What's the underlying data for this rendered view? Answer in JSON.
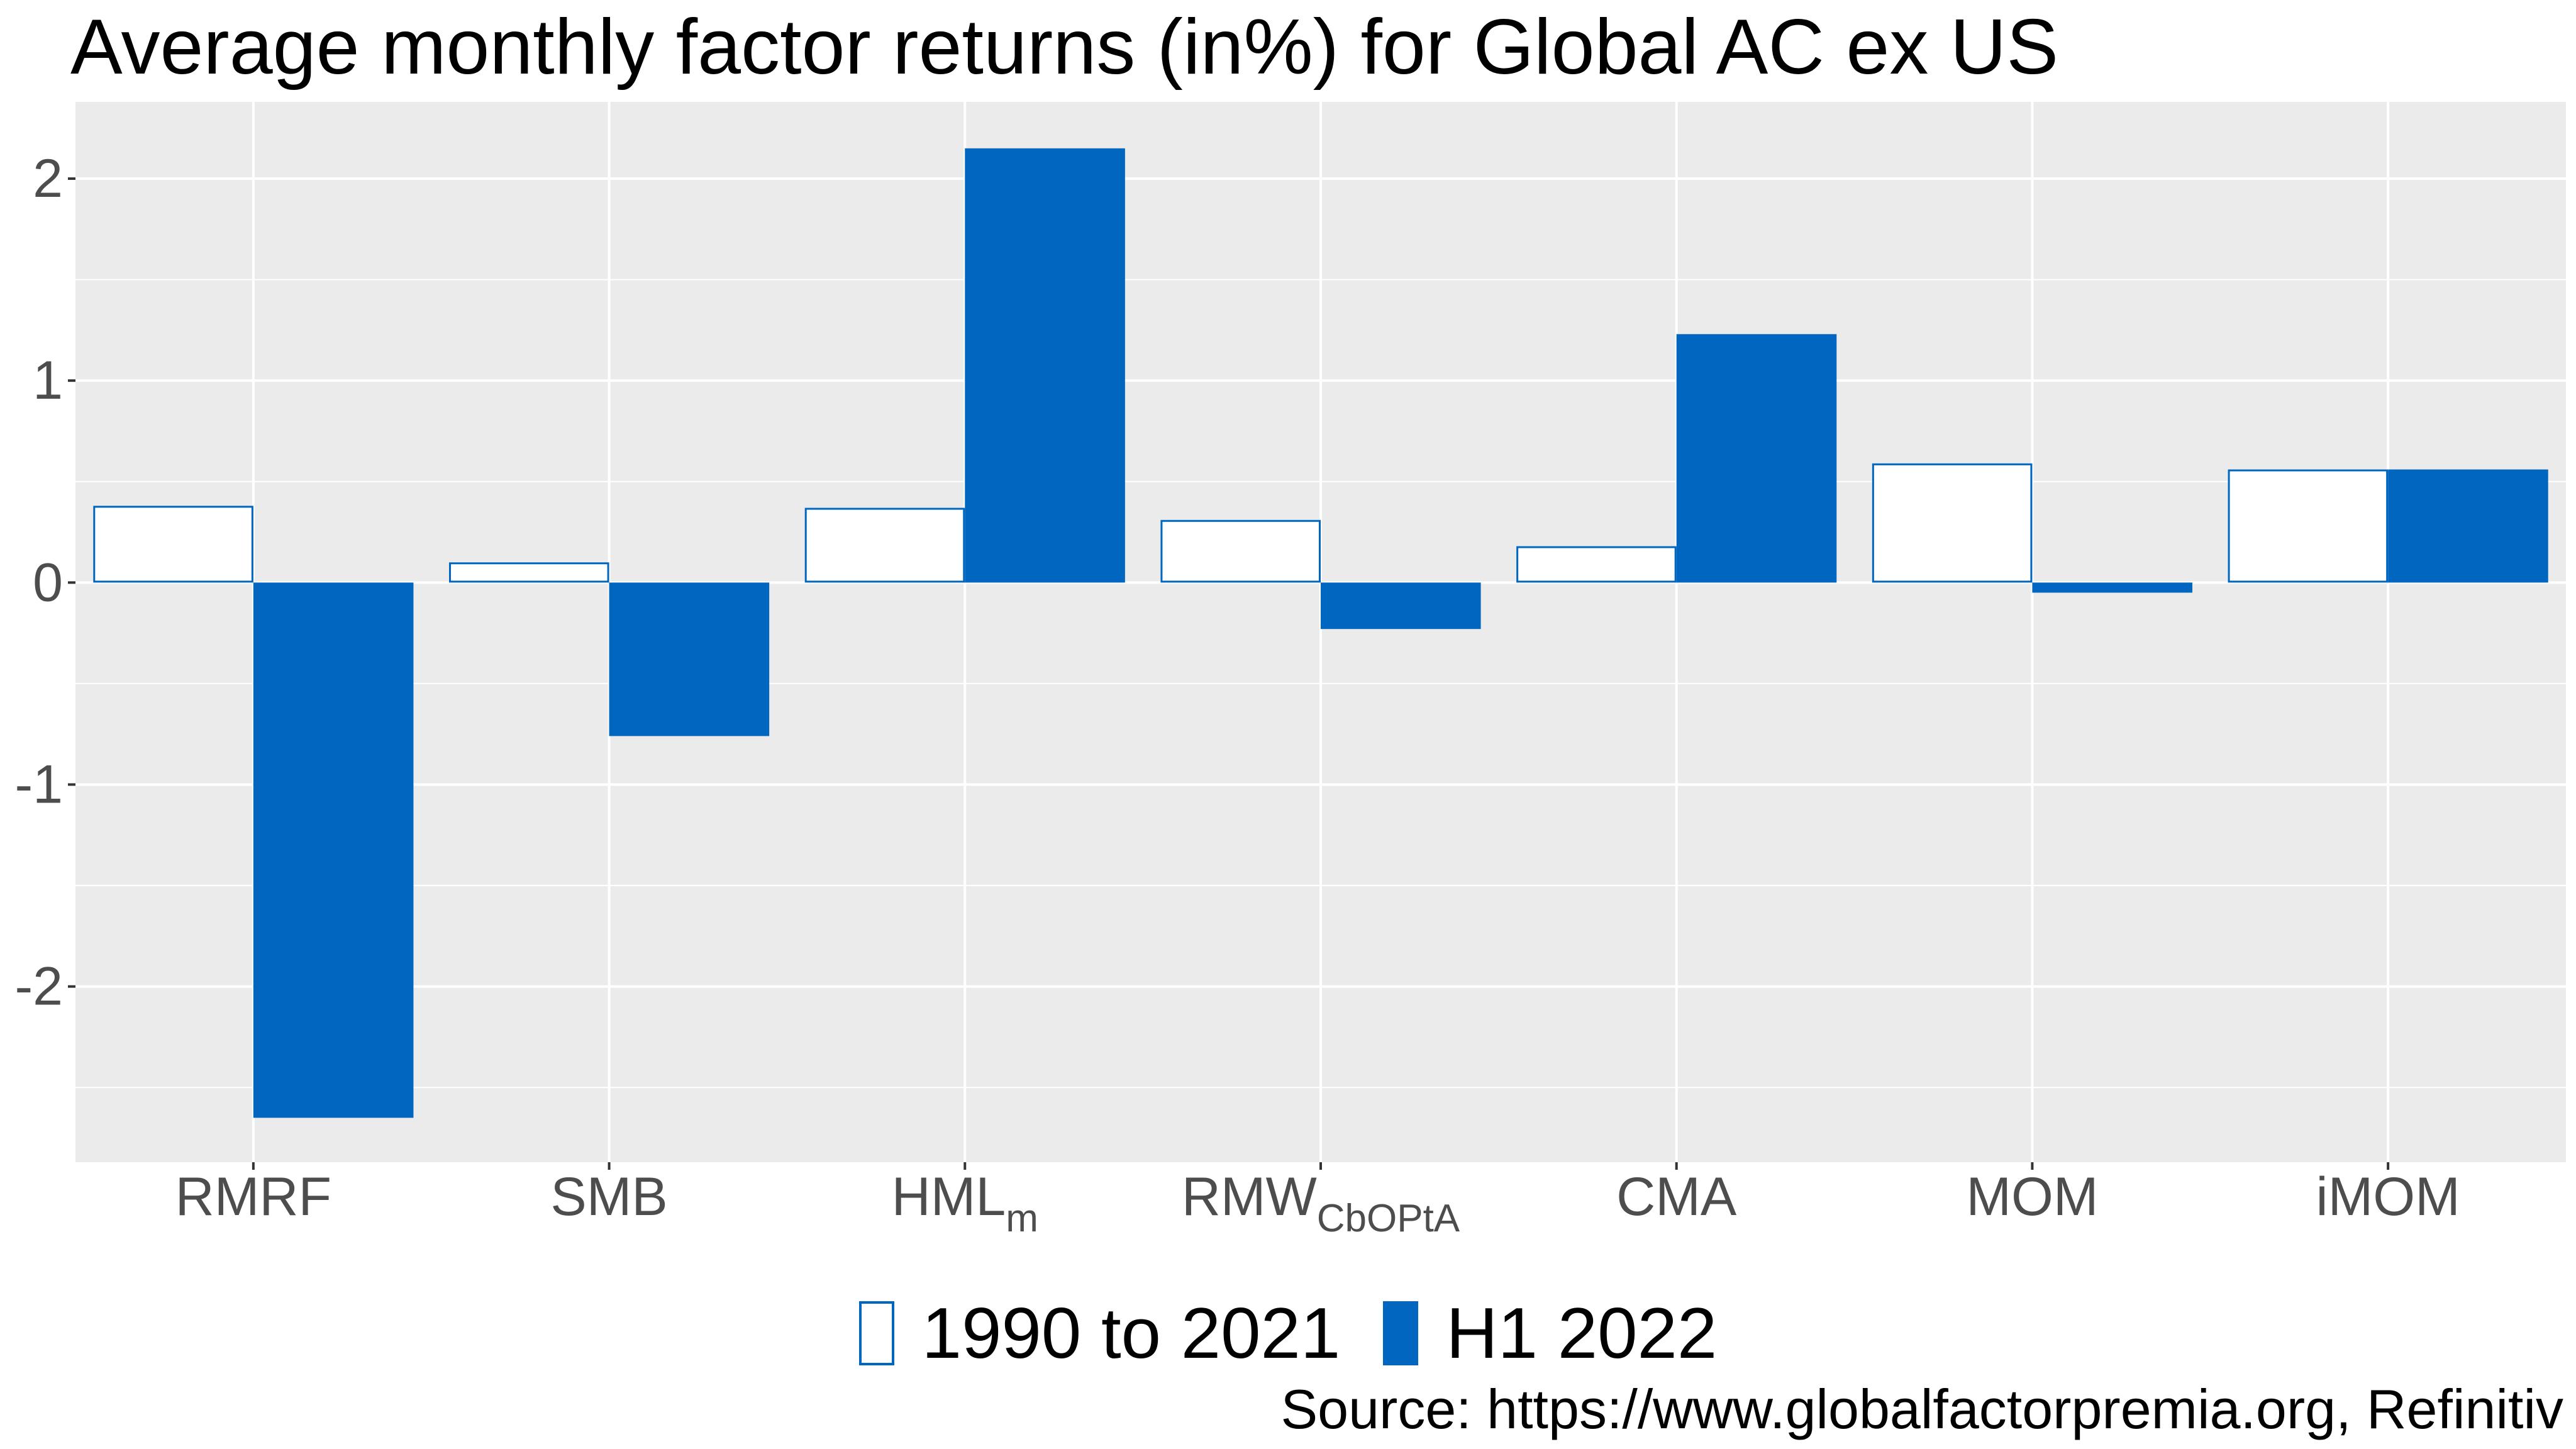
{
  "chart_data": {
    "type": "bar",
    "title": "Average monthly factor returns (in%) for Global AC ex US",
    "xlabel": "",
    "ylabel": "",
    "categories": [
      {
        "base": "RMRF",
        "sub": ""
      },
      {
        "base": "SMB",
        "sub": ""
      },
      {
        "base": "HML",
        "sub": "m"
      },
      {
        "base": "RMW",
        "sub": "CbOPtA"
      },
      {
        "base": "CMA",
        "sub": ""
      },
      {
        "base": "MOM",
        "sub": ""
      },
      {
        "base": "iMOM",
        "sub": ""
      }
    ],
    "series": [
      {
        "name": "1990 to 2021",
        "values": [
          0.38,
          0.1,
          0.37,
          0.31,
          0.18,
          0.59,
          0.56
        ],
        "fill": "#ffffff",
        "stroke": "#0066bf"
      },
      {
        "name": "H1 2022",
        "values": [
          -2.65,
          -0.76,
          2.15,
          -0.23,
          1.23,
          -0.05,
          0.56
        ],
        "fill": "#0066bf",
        "stroke": "#0066bf"
      }
    ],
    "ylim": [
      -2.87,
      2.38
    ],
    "yticks": [
      -2,
      -1,
      0,
      1,
      2
    ],
    "ytick_labels": [
      "-2",
      "-1",
      "0",
      "1",
      "2"
    ],
    "grid": true,
    "panel_color": "#ebebeb",
    "legend_position": "bottom",
    "source": "Source: https://www.globalfactorpremia.org, Refinitiv"
  }
}
